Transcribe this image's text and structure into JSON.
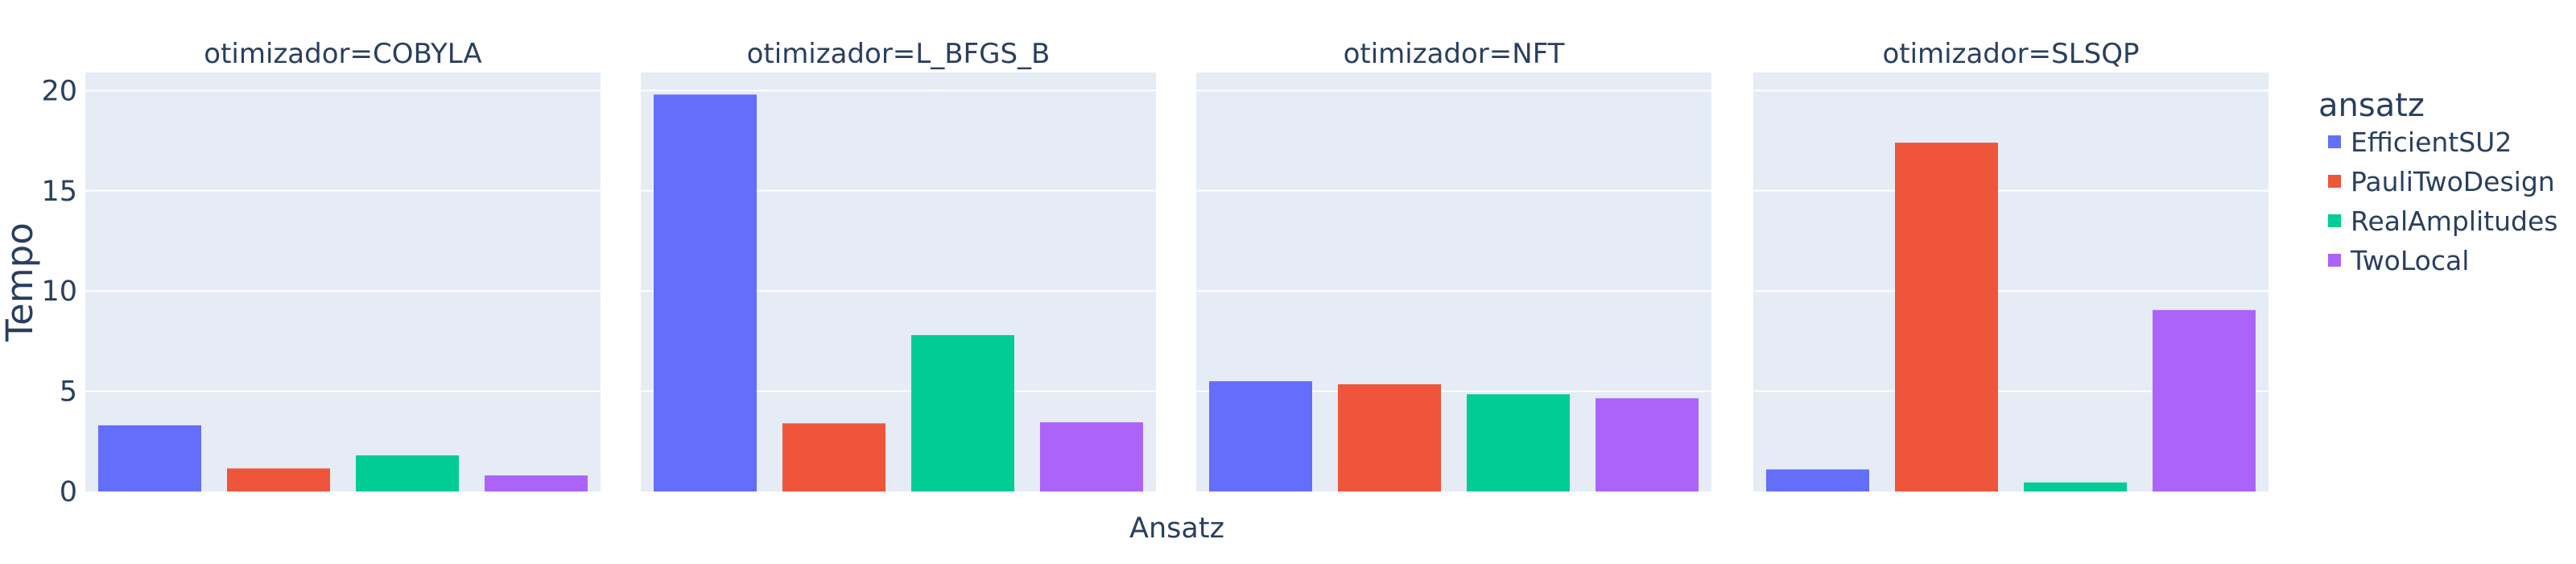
{
  "chart_data": {
    "type": "bar",
    "facet_label": "otimizador",
    "facets": [
      "COBYLA",
      "L_BFGS_B",
      "NFT",
      "SLSQP"
    ],
    "facet_titles": [
      "otimizador=COBYLA",
      "otimizador=L_BFGS_B",
      "otimizador=NFT",
      "otimizador=SLSQP"
    ],
    "categories": [
      "EfficientSU2",
      "PauliTwoDesign",
      "RealAmplitudes",
      "TwoLocal"
    ],
    "series": [
      {
        "name": "EfficientSU2",
        "color": "#636efa",
        "values": [
          3.3,
          19.8,
          5.5,
          1.1
        ]
      },
      {
        "name": "PauliTwoDesign",
        "color": "#ef553b",
        "values": [
          1.15,
          3.4,
          5.35,
          17.4
        ]
      },
      {
        "name": "RealAmplitudes",
        "color": "#00cc96",
        "values": [
          1.8,
          7.8,
          4.85,
          0.45
        ]
      },
      {
        "name": "TwoLocal",
        "color": "#ab63fa",
        "values": [
          0.8,
          3.45,
          4.65,
          9.05
        ]
      }
    ],
    "xlabel": "Ansatz",
    "ylabel": "Tempo",
    "ylim": [
      0,
      20.9
    ],
    "yticks": [
      0,
      5,
      10,
      15,
      20
    ],
    "grid": true,
    "legend_title": "ansatz",
    "legend_position": "right"
  },
  "colors": {
    "plot_background": "#e5ecf6",
    "grid": "#ffffff",
    "text": "#2a3f5f"
  }
}
